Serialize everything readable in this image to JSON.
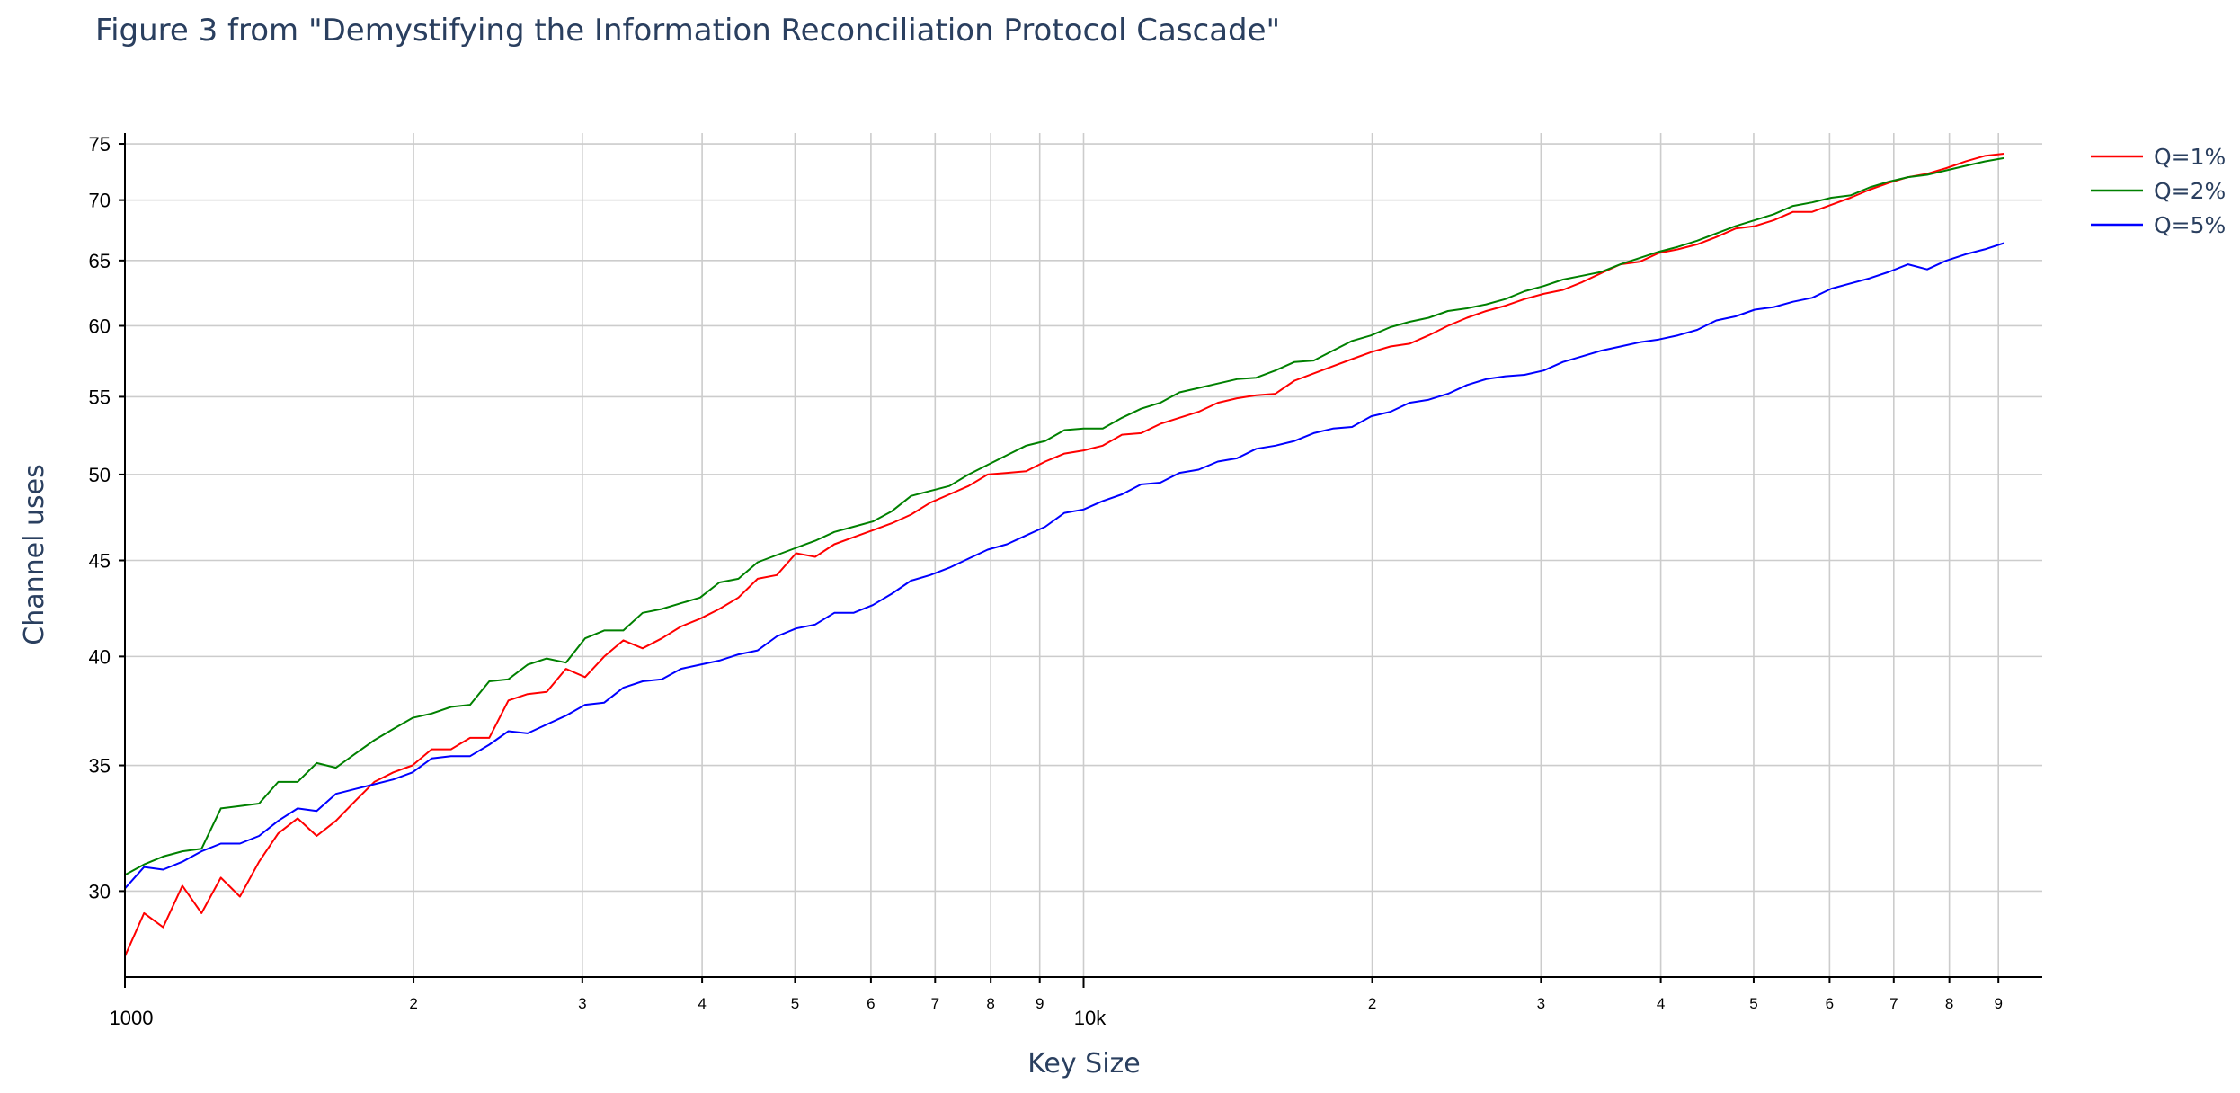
{
  "chart_data": {
    "type": "line",
    "title": "Figure 3 from \"Demystifying the Information Reconciliation Protocol Cascade\"",
    "xlabel": "Key Size",
    "ylabel": "Channel uses",
    "xscale": "log",
    "yscale": "log",
    "xlim": [
      1000,
      100000
    ],
    "ylim": [
      27,
      76
    ],
    "grid": true,
    "legend_position": "top-right",
    "x_major_ticks": [
      {
        "value": 1000,
        "label": "1000"
      },
      {
        "value": 10000,
        "label": "10k"
      }
    ],
    "x_minor_ticks": [
      {
        "value": 2000,
        "label": "2"
      },
      {
        "value": 3000,
        "label": "3"
      },
      {
        "value": 4000,
        "label": "4"
      },
      {
        "value": 5000,
        "label": "5"
      },
      {
        "value": 6000,
        "label": "6"
      },
      {
        "value": 7000,
        "label": "7"
      },
      {
        "value": 8000,
        "label": "8"
      },
      {
        "value": 9000,
        "label": "9"
      },
      {
        "value": 20000,
        "label": "2"
      },
      {
        "value": 30000,
        "label": "3"
      },
      {
        "value": 40000,
        "label": "4"
      },
      {
        "value": 50000,
        "label": "5"
      },
      {
        "value": 60000,
        "label": "6"
      },
      {
        "value": 70000,
        "label": "7"
      },
      {
        "value": 80000,
        "label": "8"
      },
      {
        "value": 90000,
        "label": "9"
      }
    ],
    "y_ticks": [
      30,
      35,
      40,
      45,
      50,
      55,
      60,
      65,
      70,
      75
    ],
    "x": [
      1000,
      1047,
      1096,
      1148,
      1202,
      1259,
      1318,
      1380,
      1445,
      1514,
      1585,
      1660,
      1738,
      1820,
      1905,
      1995,
      2089,
      2188,
      2291,
      2399,
      2512,
      2630,
      2754,
      2884,
      3020,
      3162,
      3311,
      3467,
      3631,
      3802,
      3981,
      4169,
      4365,
      4571,
      4786,
      5012,
      5248,
      5495,
      5754,
      6026,
      6310,
      6607,
      6918,
      7244,
      7586,
      7943,
      8318,
      8710,
      9120,
      9550,
      10000,
      10471,
      10965,
      11482,
      12023,
      12589,
      13183,
      13804,
      14454,
      15136,
      15849,
      16596,
      17378,
      18197,
      19055,
      19953,
      20893,
      21878,
      22909,
      23988,
      25119,
      26303,
      27542,
      28840,
      30200,
      31623,
      33113,
      34674,
      36308,
      38019,
      39811,
      41687,
      43652,
      45709,
      47863,
      50119,
      52481,
      54954,
      57544,
      60256,
      63096,
      66069,
      69183,
      72444,
      75858,
      79433,
      83176,
      87096,
      91201,
      95499,
      100000
    ],
    "series": [
      {
        "name": "Q=1%",
        "color": "#ff0000",
        "values": [
          27.7,
          29.2,
          28.7,
          30.2,
          29.2,
          30.5,
          29.8,
          31.1,
          32.2,
          32.8,
          32.1,
          32.7,
          33.5,
          34.3,
          34.7,
          35.0,
          35.7,
          35.7,
          36.2,
          36.2,
          37.9,
          38.2,
          38.3,
          39.4,
          39.0,
          40.0,
          40.8,
          40.4,
          40.9,
          41.5,
          41.9,
          42.4,
          43.0,
          44.0,
          44.2,
          45.4,
          45.2,
          45.9,
          46.3,
          46.7,
          47.1,
          47.6,
          48.3,
          48.8,
          49.3,
          50.0,
          50.1,
          50.2,
          50.8,
          51.3,
          51.5,
          51.8,
          52.5,
          52.6,
          53.2,
          53.6,
          54.0,
          54.6,
          54.9,
          55.1,
          55.2,
          56.1,
          56.6,
          57.1,
          57.6,
          58.1,
          58.5,
          58.7,
          59.3,
          60.0,
          60.6,
          61.1,
          61.5,
          62.0,
          62.4,
          62.7,
          63.3,
          64.0,
          64.7,
          64.9,
          65.6,
          65.9,
          66.3,
          66.9,
          67.6,
          67.8,
          68.3,
          69.0,
          69.0,
          69.6,
          70.2,
          70.9,
          71.5,
          72.0,
          72.3,
          72.8,
          73.4,
          73.9,
          74.1,
          74.8,
          75.4
        ]
      },
      {
        "name": "Q=2%",
        "color": "#008000",
        "values": [
          30.6,
          31.0,
          31.3,
          31.5,
          31.6,
          33.2,
          33.3,
          33.4,
          34.3,
          34.3,
          35.1,
          34.9,
          35.5,
          36.1,
          36.6,
          37.1,
          37.3,
          37.6,
          37.7,
          38.8,
          38.9,
          39.6,
          39.9,
          39.7,
          40.9,
          41.3,
          41.3,
          42.2,
          42.4,
          42.7,
          43.0,
          43.8,
          44.0,
          44.9,
          45.3,
          45.7,
          46.1,
          46.6,
          46.9,
          47.2,
          47.8,
          48.7,
          49.0,
          49.3,
          50.0,
          50.6,
          51.2,
          51.8,
          52.1,
          52.8,
          52.9,
          52.9,
          53.6,
          54.2,
          54.6,
          55.3,
          55.6,
          55.9,
          56.2,
          56.3,
          56.8,
          57.4,
          57.5,
          58.2,
          58.9,
          59.3,
          59.9,
          60.3,
          60.6,
          61.1,
          61.3,
          61.6,
          62.0,
          62.6,
          63.0,
          63.5,
          63.8,
          64.1,
          64.7,
          65.2,
          65.7,
          66.1,
          66.6,
          67.2,
          67.8,
          68.3,
          68.8,
          69.5,
          69.8,
          70.2,
          70.4,
          71.1,
          71.6,
          72.0,
          72.2,
          72.6,
          73.0,
          73.4,
          73.7,
          74.0,
          74.3
        ]
      },
      {
        "name": "Q=5%",
        "color": "#0000ff",
        "values": [
          30.1,
          30.9,
          30.8,
          31.1,
          31.5,
          31.8,
          31.8,
          32.1,
          32.7,
          33.2,
          33.1,
          33.8,
          34.0,
          34.2,
          34.4,
          34.7,
          35.3,
          35.4,
          35.4,
          35.9,
          36.5,
          36.4,
          36.8,
          37.2,
          37.7,
          37.8,
          38.5,
          38.8,
          38.9,
          39.4,
          39.6,
          39.8,
          40.1,
          40.3,
          41.0,
          41.4,
          41.6,
          42.2,
          42.2,
          42.6,
          43.2,
          43.9,
          44.2,
          44.6,
          45.1,
          45.6,
          45.9,
          46.4,
          46.9,
          47.7,
          47.9,
          48.4,
          48.8,
          49.4,
          49.5,
          50.1,
          50.3,
          50.8,
          51.0,
          51.6,
          51.8,
          52.1,
          52.6,
          52.9,
          53.0,
          53.7,
          54.0,
          54.6,
          54.8,
          55.2,
          55.8,
          56.2,
          56.4,
          56.5,
          56.8,
          57.4,
          57.8,
          58.2,
          58.5,
          58.8,
          59.0,
          59.3,
          59.7,
          60.4,
          60.7,
          61.2,
          61.4,
          61.8,
          62.1,
          62.8,
          63.2,
          63.6,
          64.1,
          64.7,
          64.3,
          65.0,
          65.5,
          65.9,
          66.4,
          67.0,
          67.6
        ]
      }
    ]
  }
}
